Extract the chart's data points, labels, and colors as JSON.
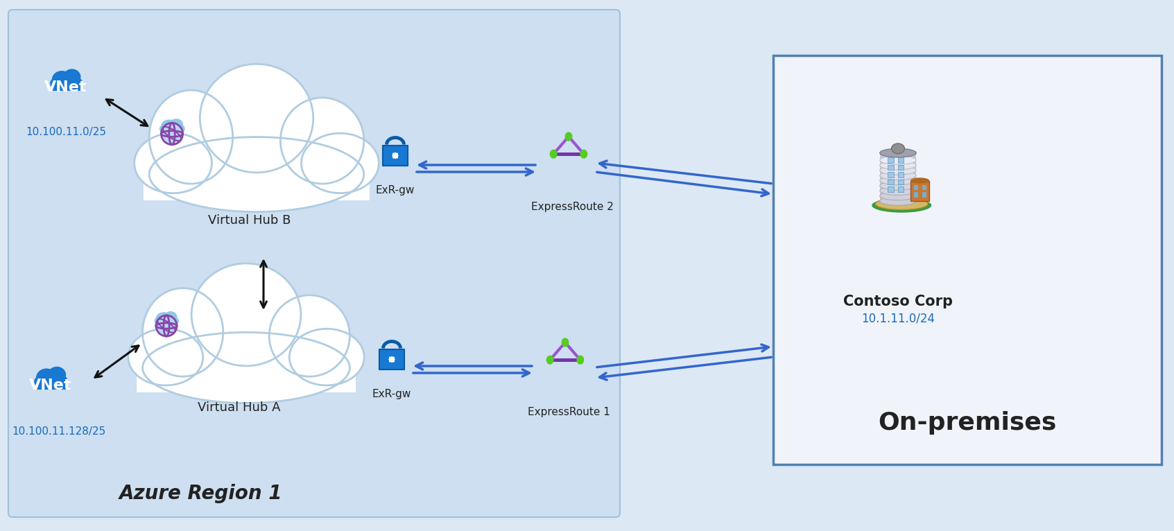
{
  "bg_color": "#dde8f5",
  "azure_bg_color": "#cddff0",
  "azure_bg_edge": "#a0c0dc",
  "onprem_bg": "#f0f4fa",
  "onprem_edge": "#5080b0",
  "cloud_face": "#ffffff",
  "cloud_edge": "#b0cce0",
  "vnet_blue": "#1878d2",
  "lock_blue": "#1878d2",
  "lock_shackle": "#0a5aa8",
  "globe_bg": "#90c8e8",
  "globe_face": "#b8d8f0",
  "globe_ring": "#8844aa",
  "er_tri_color": "#9955cc",
  "er_dot_color": "#55cc22",
  "arrow_blue": "#3366cc",
  "arrow_black": "#111111",
  "text_dark": "#222222",
  "text_blue": "#1a6abf",
  "text_italic_color": "#333333",
  "vnet_top_label": "VNet",
  "vnet_top_ip": "10.100.11.0/25",
  "vnet_bot_label": "VNet",
  "vnet_bot_ip": "10.100.11.128/25",
  "hub_b_label": "Virtual Hub B",
  "hub_a_label": "Virtual Hub A",
  "exr_gw_label": "ExR-gw",
  "er1_label": "ExpressRoute 1",
  "er2_label": "ExpressRoute 2",
  "contoso_label": "Contoso Corp",
  "contoso_ip": "10.1.11.0/24",
  "onprem_label": "On-premises",
  "azure_region_label": "Azure Region 1",
  "fig_w": 16.93,
  "fig_h": 7.66,
  "dpi": 100
}
